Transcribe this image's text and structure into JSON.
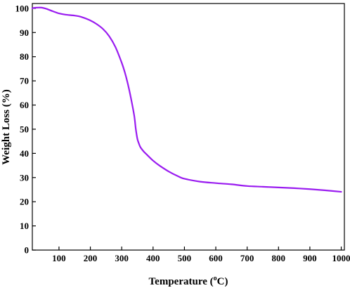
{
  "chart_data": {
    "type": "line",
    "title": "",
    "xlabel": {
      "before": "Temperature (",
      "sup": "o",
      "after": "C)"
    },
    "ylabel": "Weight Loss (%)",
    "xlim": [
      15,
      1010
    ],
    "ylim": [
      0,
      102
    ],
    "xticks": [
      100,
      200,
      300,
      400,
      500,
      600,
      700,
      800,
      900,
      1000
    ],
    "yticks": [
      0,
      10,
      20,
      30,
      40,
      50,
      60,
      70,
      80,
      90,
      100
    ],
    "grid": false,
    "legend": "none",
    "colors": {
      "line": "#9a1cf0",
      "axis": "#000000"
    },
    "series": [
      {
        "x": [
          15,
          20,
          30,
          45,
          60,
          80,
          100,
          120,
          150,
          170,
          200,
          220,
          240,
          260,
          280,
          300,
          310,
          320,
          330,
          340,
          345,
          350,
          355,
          360,
          370,
          380,
          400,
          420,
          450,
          480,
          500,
          550,
          600,
          650,
          700,
          750,
          800,
          850,
          900,
          950,
          1000
        ],
        "y": [
          100.0,
          100.2,
          100.3,
          100.3,
          99.8,
          98.8,
          97.9,
          97.4,
          97.0,
          96.5,
          95.0,
          93.5,
          91.5,
          88.5,
          84.0,
          77.5,
          73.5,
          68.5,
          62.5,
          55.5,
          50.0,
          46.0,
          44.0,
          42.5,
          40.8,
          39.5,
          37.0,
          35.0,
          32.5,
          30.5,
          29.5,
          28.3,
          27.7,
          27.2,
          26.5,
          26.2,
          25.9,
          25.6,
          25.2,
          24.7,
          24.1
        ]
      }
    ]
  }
}
